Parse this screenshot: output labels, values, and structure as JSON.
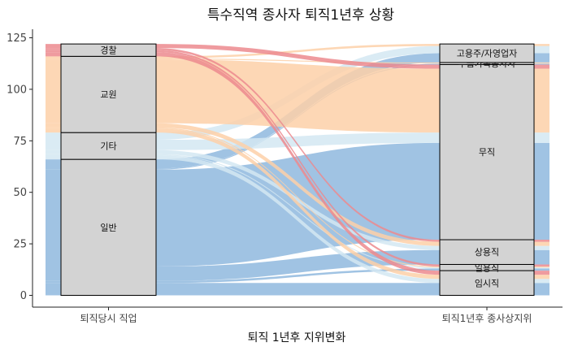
{
  "chart_data": {
    "type": "alluvial",
    "title": "특수직역 종사자 퇴직1년후 상황",
    "xlabel": "퇴직 1년후 지위변화",
    "ylabel": "",
    "ylim": [
      0,
      127
    ],
    "yticks": [
      0,
      25,
      50,
      75,
      100,
      125
    ],
    "axes": [
      "퇴직당시 직업",
      "퇴직1년후 종사상지위"
    ],
    "left_strata": [
      {
        "name": "일반",
        "value": 66,
        "color": "#8fb8de"
      },
      {
        "name": "기타",
        "value": 13,
        "color": "#d3e7f2"
      },
      {
        "name": "교원",
        "value": 37,
        "color": "#fdd0a8"
      },
      {
        "name": "경찰",
        "value": 6,
        "color": "#ec8a8e"
      }
    ],
    "right_strata": [
      {
        "name": "임시직",
        "value": 12
      },
      {
        "name": "일용직",
        "value": 3
      },
      {
        "name": "상용직",
        "value": 12
      },
      {
        "name": "무직",
        "value": 85
      },
      {
        "name": "무급가족종사자",
        "value": 1
      },
      {
        "name": "고용주/자영업자",
        "value": 9
      }
    ],
    "flows": [
      {
        "from": "일반",
        "to": "임시직",
        "value": 6
      },
      {
        "from": "일반",
        "to": "일용직",
        "value": 1
      },
      {
        "from": "일반",
        "to": "상용직",
        "value": 7
      },
      {
        "from": "일반",
        "to": "무직",
        "value": 47
      },
      {
        "from": "일반",
        "to": "무급가족종사자",
        "value": 0.5
      },
      {
        "from": "일반",
        "to": "고용주/자영업자",
        "value": 4.5
      },
      {
        "from": "기타",
        "to": "임시직",
        "value": 2
      },
      {
        "from": "기타",
        "to": "일용직",
        "value": 0.5
      },
      {
        "from": "기타",
        "to": "상용직",
        "value": 2
      },
      {
        "from": "기타",
        "to": "무직",
        "value": 5
      },
      {
        "from": "기타",
        "to": "고용주/자영업자",
        "value": 3.5
      },
      {
        "from": "교원",
        "to": "임시직",
        "value": 2
      },
      {
        "from": "교원",
        "to": "일용직",
        "value": 0.5
      },
      {
        "from": "교원",
        "to": "상용직",
        "value": 2
      },
      {
        "from": "교원",
        "to": "무직",
        "value": 31
      },
      {
        "from": "교원",
        "to": "무급가족종사자",
        "value": 0.5
      },
      {
        "from": "교원",
        "to": "고용주/자영업자",
        "value": 1
      },
      {
        "from": "경찰",
        "to": "임시직",
        "value": 2
      },
      {
        "from": "경찰",
        "to": "일용직",
        "value": 1
      },
      {
        "from": "경찰",
        "to": "상용직",
        "value": 1
      },
      {
        "from": "경찰",
        "to": "무직",
        "value": 2
      }
    ],
    "grid": false,
    "legend": "none"
  }
}
